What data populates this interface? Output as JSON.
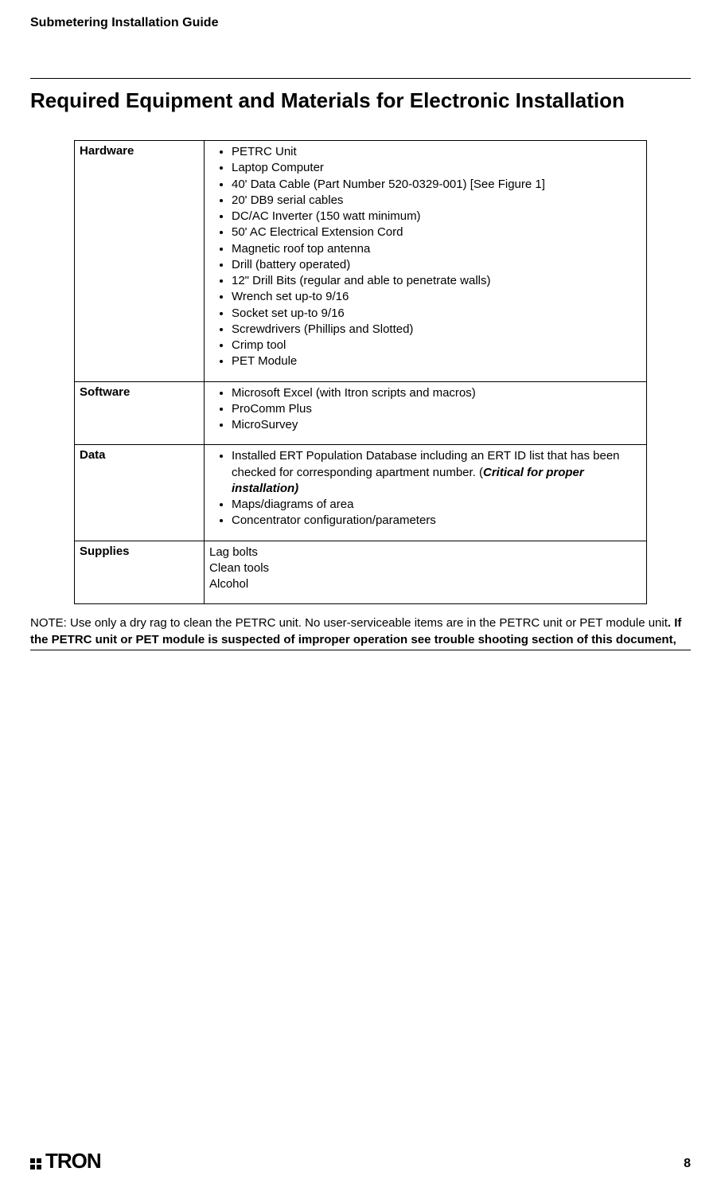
{
  "header": {
    "title": "Submetering Installation Guide"
  },
  "section": {
    "title": "Required Equipment and Materials for Electronic Installation"
  },
  "table": {
    "rows": [
      {
        "label": "Hardware",
        "type": "bullets",
        "items": [
          "PETRC Unit",
          "Laptop Computer",
          "40' Data Cable (Part Number 520-0329-001) [See Figure 1]",
          "20' DB9 serial cables",
          "DC/AC Inverter (150 watt minimum)",
          "50' AC Electrical Extension Cord",
          "Magnetic roof top antenna",
          "Drill (battery operated)",
          "12\" Drill Bits (regular and able to penetrate walls)",
          "Wrench set up-to 9/16",
          "Socket set up-to 9/16",
          "Screwdrivers (Phillips and Slotted)",
          "Crimp tool",
          "PET Module"
        ]
      },
      {
        "label": "Software",
        "type": "bullets",
        "items": [
          "Microsoft Excel (with Itron scripts and macros)",
          "ProComm Plus",
          "MicroSurvey"
        ]
      },
      {
        "label": "Data",
        "type": "bullets_data",
        "item0_pre": "Installed ERT Population Database including an ERT ID list that has been checked for corresponding apartment number.  (",
        "item0_critical": "Critical for proper installation)",
        "items_rest": [
          "Maps/diagrams of area",
          "Concentrator configuration/parameters"
        ]
      },
      {
        "label": "Supplies",
        "type": "lines",
        "items": [
          "Lag bolts",
          "Clean tools",
          "Alcohol"
        ]
      }
    ]
  },
  "note": {
    "pre": "NOTE:  Use only a dry rag to clean the PETRC unit.  No user-serviceable items are in the PETRC unit or PET module unit",
    "bold": ".  If the PETRC unit or PET module is suspected of improper operation see trouble shooting section of this document,"
  },
  "footer": {
    "logo_text": "TRON",
    "page_number": "8"
  }
}
